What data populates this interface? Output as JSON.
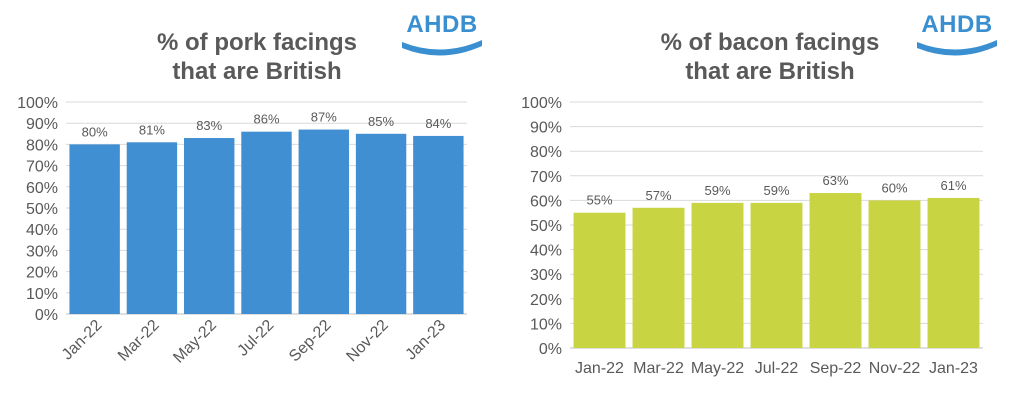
{
  "logo_text": "AHDB",
  "colors": {
    "pork_bar": "#3f8fd2",
    "bacon_bar": "#c9d443",
    "logo": "#3a8fd1",
    "text": "#595959",
    "grid": "#d9d9d9"
  },
  "chart_data": [
    {
      "type": "bar",
      "title_lines": [
        "% of pork facings",
        "that are British"
      ],
      "categories": [
        "Jan-22",
        "Mar-22",
        "May-22",
        "Jul-22",
        "Sep-22",
        "Nov-22",
        "Jan-23"
      ],
      "values": [
        80,
        81,
        83,
        86,
        87,
        85,
        84
      ],
      "data_labels": [
        "80%",
        "81%",
        "83%",
        "86%",
        "87%",
        "85%",
        "84%"
      ],
      "yticks": [
        "0%",
        "10%",
        "20%",
        "30%",
        "40%",
        "50%",
        "60%",
        "70%",
        "80%",
        "90%",
        "100%"
      ],
      "ylim": [
        0,
        100
      ],
      "xlabel": "",
      "ylabel": "",
      "x_tick_rotation": -45,
      "grid": true
    },
    {
      "type": "bar",
      "title_lines": [
        "% of bacon facings",
        "that are British"
      ],
      "categories": [
        "Jan-22",
        "Mar-22",
        "May-22",
        "Jul-22",
        "Sep-22",
        "Nov-22",
        "Jan-23"
      ],
      "values": [
        55,
        57,
        59,
        59,
        63,
        60,
        61
      ],
      "data_labels": [
        "55%",
        "57%",
        "59%",
        "59%",
        "63%",
        "60%",
        "61%"
      ],
      "yticks": [
        "0%",
        "10%",
        "20%",
        "30%",
        "40%",
        "50%",
        "60%",
        "70%",
        "80%",
        "90%",
        "100%"
      ],
      "ylim": [
        0,
        100
      ],
      "xlabel": "",
      "ylabel": "",
      "x_tick_rotation": 0,
      "grid": true
    }
  ]
}
